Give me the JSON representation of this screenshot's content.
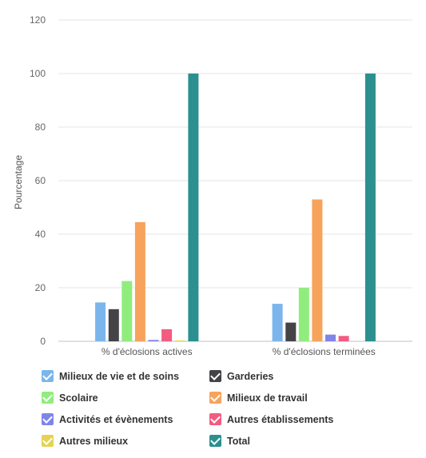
{
  "chart_data": {
    "type": "bar",
    "categories": [
      "% d'éclosions actives",
      "% d'éclosions terminées"
    ],
    "ylabel": "Pourcentage",
    "ylim": [
      0,
      120
    ],
    "yticks": [
      0,
      20,
      40,
      60,
      80,
      100,
      120
    ],
    "grid": true,
    "legend_position": "bottom",
    "series": [
      {
        "name": "Milieux de vie et de soins",
        "color": "#7cb5ec",
        "values": [
          14.5,
          14
        ]
      },
      {
        "name": "Garderies",
        "color": "#434348",
        "values": [
          12,
          7
        ]
      },
      {
        "name": "Scolaire",
        "color": "#90ed7d",
        "values": [
          22.5,
          20
        ]
      },
      {
        "name": "Milieux de travail",
        "color": "#f7a35c",
        "values": [
          44.5,
          53
        ]
      },
      {
        "name": "Activités et évènements",
        "color": "#8085e9",
        "values": [
          0.5,
          2.5
        ]
      },
      {
        "name": "Autres établissements",
        "color": "#f15c80",
        "values": [
          4.5,
          2
        ]
      },
      {
        "name": "Autres milieux",
        "color": "#e4d354",
        "values": [
          0.3,
          0
        ]
      },
      {
        "name": "Total",
        "color": "#2b908f",
        "values": [
          100,
          100
        ]
      }
    ]
  }
}
